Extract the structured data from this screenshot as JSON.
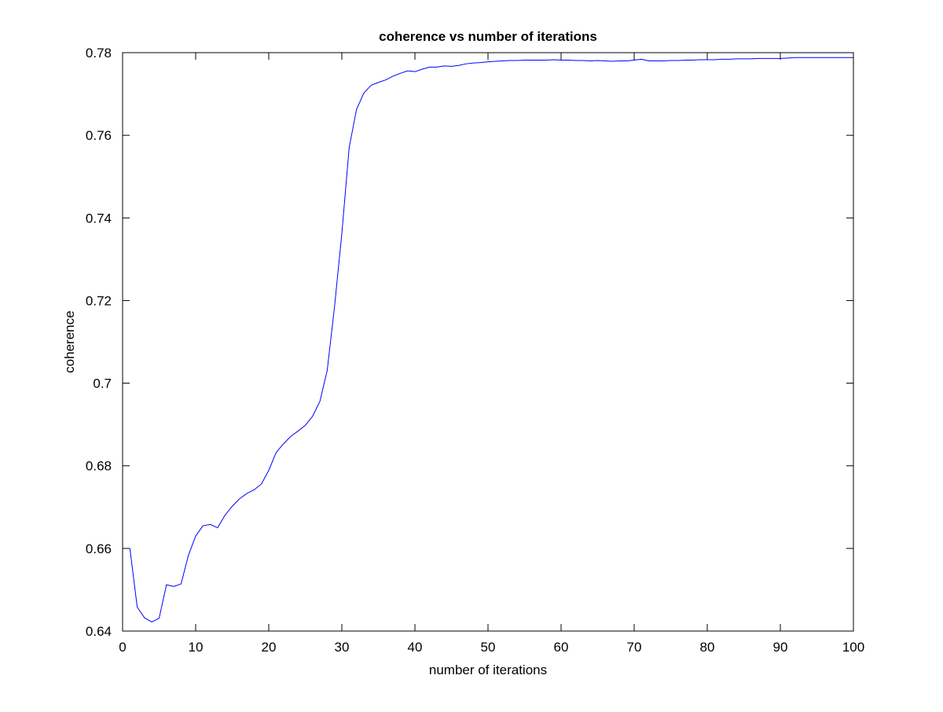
{
  "colors": {
    "background": "#ffffff",
    "axes": "#000000",
    "series": "#0000ff"
  },
  "chart_data": {
    "type": "line",
    "title": "coherence vs number of iterations",
    "xlabel": "number of iterations",
    "ylabel": "coherence",
    "xlim": [
      0,
      100
    ],
    "ylim": [
      0.64,
      0.78
    ],
    "xticks": [
      0,
      10,
      20,
      30,
      40,
      50,
      60,
      70,
      80,
      90,
      100
    ],
    "xtick_labels": [
      "0",
      "10",
      "20",
      "30",
      "40",
      "50",
      "60",
      "70",
      "80",
      "90",
      "100"
    ],
    "yticks": [
      0.64,
      0.66,
      0.68,
      0.7,
      0.72,
      0.74,
      0.76,
      0.78
    ],
    "ytick_labels": [
      "0.64",
      "0.66",
      "0.68",
      "0.7",
      "0.72",
      "0.74",
      "0.76",
      "0.78"
    ],
    "grid": false,
    "legend": null,
    "series": [
      {
        "color": "#0000ff",
        "x": [
          1,
          2,
          3,
          4,
          5,
          6,
          7,
          8,
          9,
          10,
          11,
          12,
          13,
          14,
          15,
          16,
          17,
          18,
          19,
          20,
          21,
          22,
          23,
          24,
          25,
          26,
          27,
          28,
          29,
          30,
          31,
          32,
          33,
          34,
          35,
          36,
          37,
          38,
          39,
          40,
          41,
          42,
          43,
          44,
          45,
          46,
          47,
          48,
          49,
          50,
          51,
          52,
          53,
          54,
          55,
          56,
          57,
          58,
          59,
          60,
          61,
          62,
          63,
          64,
          65,
          66,
          67,
          68,
          69,
          70,
          71,
          72,
          73,
          74,
          75,
          76,
          77,
          78,
          79,
          80,
          81,
          82,
          83,
          84,
          85,
          86,
          87,
          88,
          89,
          90,
          91,
          92,
          93,
          94,
          95,
          96,
          97,
          98,
          99,
          100
        ],
        "y": [
          0.66,
          0.6458,
          0.6432,
          0.6422,
          0.6431,
          0.6512,
          0.6508,
          0.6514,
          0.6583,
          0.663,
          0.6655,
          0.6658,
          0.665,
          0.668,
          0.6702,
          0.672,
          0.6733,
          0.6742,
          0.6756,
          0.6789,
          0.6832,
          0.6853,
          0.6871,
          0.6884,
          0.6898,
          0.692,
          0.6956,
          0.7031,
          0.7185,
          0.7362,
          0.757,
          0.7662,
          0.7702,
          0.7721,
          0.7728,
          0.7734,
          0.7743,
          0.775,
          0.7756,
          0.7754,
          0.776,
          0.7765,
          0.7765,
          0.7768,
          0.7767,
          0.7769,
          0.7773,
          0.7775,
          0.7776,
          0.7778,
          0.7779,
          0.778,
          0.7781,
          0.7781,
          0.7782,
          0.7782,
          0.7782,
          0.7782,
          0.7783,
          0.7782,
          0.7782,
          0.7781,
          0.7781,
          0.778,
          0.7781,
          0.778,
          0.7779,
          0.778,
          0.778,
          0.7782,
          0.7784,
          0.778,
          0.778,
          0.778,
          0.7781,
          0.7781,
          0.7782,
          0.7782,
          0.7783,
          0.7783,
          0.7783,
          0.7784,
          0.7784,
          0.7785,
          0.7785,
          0.7785,
          0.7786,
          0.7786,
          0.7786,
          0.7786,
          0.7787,
          0.7788,
          0.7788,
          0.7788,
          0.7788,
          0.7788,
          0.7788,
          0.7788,
          0.7788,
          0.7788
        ]
      }
    ]
  }
}
